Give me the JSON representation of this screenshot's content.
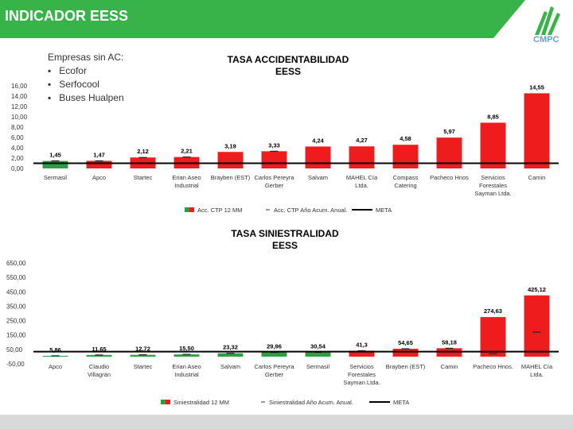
{
  "header": {
    "title": "INDICADOR EESS",
    "logo_text": "CMPC"
  },
  "colors": {
    "accent": "#38b34a",
    "bar": "#ee1c1c",
    "bar_first": "#2e9e44",
    "meta": "#000000"
  },
  "note": {
    "title": "Empresas sin AC:",
    "items": [
      "Ecofor",
      "Serfocool",
      "Buses Hualpen"
    ]
  },
  "chart_data": [
    {
      "type": "bar",
      "title_lines": [
        "TASA ACCIDENTABILIDAD",
        "EESS"
      ],
      "categories": [
        [
          "Sermasil"
        ],
        [
          "Apco"
        ],
        [
          "Startec"
        ],
        [
          "Erian Aseo",
          "Industrial"
        ],
        [
          "Brayben (EST)"
        ],
        [
          "Carlos Pereyra",
          "Gerber"
        ],
        [
          "Salvam"
        ],
        [
          "MAHEL Cía",
          "Ltda."
        ],
        [
          "Compass",
          "Catering"
        ],
        [
          "Pacheco Hnos"
        ],
        [
          "Servicios",
          "Forestales",
          "Sayman Ltda."
        ],
        [
          "Camin"
        ]
      ],
      "values": [
        1.45,
        1.47,
        2.12,
        2.21,
        3.19,
        3.33,
        4.24,
        4.27,
        4.58,
        5.97,
        8.85,
        14.55
      ],
      "value_labels": [
        "1,45",
        "1,47",
        "2,12",
        "2,21",
        "3,19",
        "3,33",
        "4,24",
        "4,27",
        "4,58",
        "5,97",
        "8,85",
        "14,55"
      ],
      "bar_colors": [
        "#2e9e44",
        "#ee1c1c",
        "#ee1c1c",
        "#ee1c1c",
        "#ee1c1c",
        "#ee1c1c",
        "#ee1c1c",
        "#ee1c1c",
        "#ee1c1c",
        "#ee1c1c",
        "#ee1c1c",
        "#ee1c1c"
      ],
      "anual_values": [
        1.45,
        1.47,
        2.12,
        2.21,
        1.0,
        3.33,
        1.0,
        1.0,
        1.0,
        1.0,
        1.0,
        1.0
      ],
      "meta": 1.0,
      "ylim": [
        0,
        16
      ],
      "yticks": [
        0,
        2,
        4,
        6,
        8,
        10,
        12,
        14,
        16
      ],
      "ytick_labels": [
        "0,00",
        "2,00",
        "4,00",
        "6,00",
        "8,00",
        "10,00",
        "12,00",
        "14,00",
        "16,00"
      ],
      "legend": [
        "Acc. CTP 12 MM",
        "Acc. CTP Año Acum. Anual.",
        "META"
      ]
    },
    {
      "type": "bar",
      "title_lines": [
        "TASA SINIESTRALIDAD",
        "EESS"
      ],
      "categories": [
        [
          "Apco"
        ],
        [
          "Claudio",
          "Villagrán"
        ],
        [
          "Startec"
        ],
        [
          "Erian Aseo",
          "Industrial"
        ],
        [
          "Salvam"
        ],
        [
          "Carlos Pereyra",
          "Gerber"
        ],
        [
          "Sermasil"
        ],
        [
          "Servicios",
          "Forestales",
          "Sayman Ltda."
        ],
        [
          "Brayben (EST)"
        ],
        [
          "Camin"
        ],
        [
          "Pacheco Hnos."
        ],
        [
          "MAHEL Cía",
          "Ltda."
        ]
      ],
      "values": [
        5.86,
        11.65,
        12.72,
        15.5,
        23.32,
        29.96,
        30.54,
        41.3,
        54.65,
        58.18,
        274.63,
        425.12
      ],
      "value_labels": [
        "5,86",
        "11,65",
        "12,72",
        "15,50",
        "23,32",
        "29,96",
        "30,54",
        "41,3",
        "54,65",
        "58,18",
        "274,63",
        "425,12"
      ],
      "bar_colors": [
        "#2e9e44",
        "#2e9e44",
        "#2e9e44",
        "#2e9e44",
        "#2e9e44",
        "#2e9e44",
        "#2e9e44",
        "#ee1c1c",
        "#ee1c1c",
        "#ee1c1c",
        "#ee1c1c",
        "#ee1c1c"
      ],
      "anual_values": [
        5.86,
        11.65,
        12.72,
        15.5,
        23.32,
        29.96,
        30.54,
        41.3,
        54.65,
        58.18,
        20,
        170
      ],
      "meta": 35,
      "ylim": [
        -50,
        650
      ],
      "yticks": [
        -50,
        50,
        150,
        250,
        350,
        450,
        550,
        650
      ],
      "ytick_labels": [
        "-50,00",
        "50,00",
        "150,00",
        "250,00",
        "350,00",
        "450,00",
        "550,00",
        "650,00"
      ],
      "legend": [
        "Siniestralidad 12 MM",
        "Siniestralidad Año Acum. Anual.",
        "META"
      ]
    }
  ]
}
